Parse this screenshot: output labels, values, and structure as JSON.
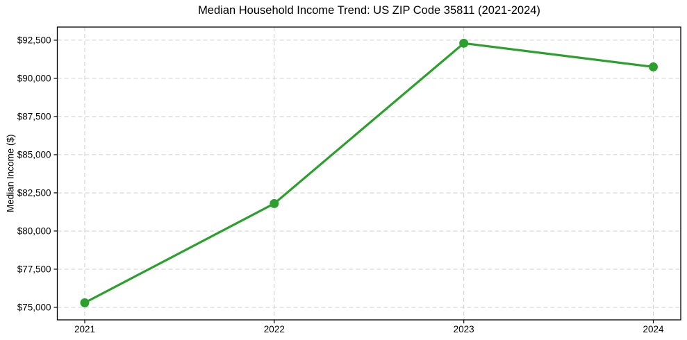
{
  "page": {
    "background": "#ffffff"
  },
  "chart_data": {
    "type": "line",
    "title": "Median Household Income Trend: US ZIP Code 35811 (2021-2024)",
    "xlabel": "",
    "ylabel": "Median Income ($)",
    "categories": [
      "2021",
      "2022",
      "2023",
      "2024"
    ],
    "series": [
      {
        "name": "Median household income",
        "values": [
          75300,
          81800,
          92300,
          90750
        ],
        "color": "#2ca02c",
        "marker": "circle"
      }
    ],
    "ylim": [
      74180,
      93360
    ],
    "y_ticks": [
      {
        "value": 75000,
        "label": "$75,000"
      },
      {
        "value": 77500,
        "label": "$77,500"
      },
      {
        "value": 80000,
        "label": "$80,000"
      },
      {
        "value": 82500,
        "label": "$82,500"
      },
      {
        "value": 85000,
        "label": "$85,000"
      },
      {
        "value": 87500,
        "label": "$87,500"
      },
      {
        "value": 90000,
        "label": "$90,000"
      },
      {
        "value": 92500,
        "label": "$92,500"
      }
    ],
    "grid": true,
    "grid_style": "dashed",
    "grid_color": "#cfcfcf",
    "axis_color": "#000000",
    "tick_label_color": "#000000",
    "line_color": "#2ca02c",
    "legend": false
  }
}
